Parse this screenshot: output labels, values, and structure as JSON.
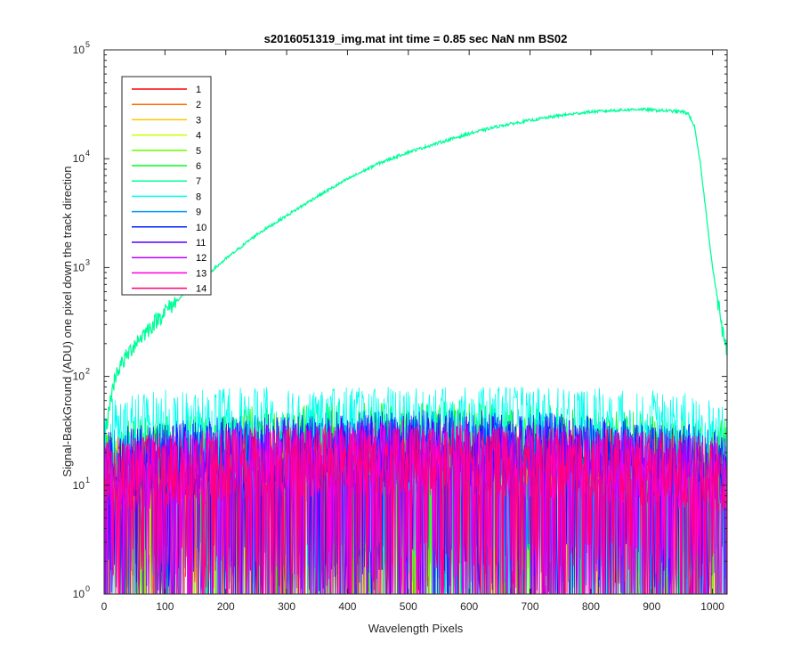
{
  "chart_data": {
    "type": "line",
    "title": "s2016051319_img.mat int time = 0.85 sec  NaN nm BS02",
    "xlabel": "Wavelength Pixels",
    "ylabel": "Signal-BackGround (ADU) one pixel down the track direction",
    "xlim": [
      0,
      1024
    ],
    "ylim": [
      1,
      100000
    ],
    "yscale": "log",
    "grid": false,
    "legend_position": "top-left",
    "x_ticks": [
      0,
      100,
      200,
      300,
      400,
      500,
      600,
      700,
      800,
      900,
      1000
    ],
    "y_ticks": [
      {
        "value": 1,
        "base": "10",
        "exp": "0"
      },
      {
        "value": 10,
        "base": "10",
        "exp": "1"
      },
      {
        "value": 100,
        "base": "10",
        "exp": "2"
      },
      {
        "value": 1000,
        "base": "10",
        "exp": "3"
      },
      {
        "value": 10000,
        "base": "10",
        "exp": "4"
      },
      {
        "value": 100000,
        "base": "10",
        "exp": "5"
      }
    ],
    "series": [
      {
        "name": "1",
        "color": "#ff0000",
        "kind": "noise",
        "typical": 10,
        "max": 45
      },
      {
        "name": "2",
        "color": "#ff6a00",
        "kind": "noise",
        "typical": 10,
        "max": 45
      },
      {
        "name": "3",
        "color": "#ffc800",
        "kind": "noise",
        "typical": 10,
        "max": 45
      },
      {
        "name": "4",
        "color": "#c8ff00",
        "kind": "noise",
        "typical": 12,
        "max": 50
      },
      {
        "name": "5",
        "color": "#6aff00",
        "kind": "noise",
        "typical": 15,
        "max": 70
      },
      {
        "name": "6",
        "color": "#00ff22",
        "kind": "noise",
        "typical": 18,
        "max": 90
      },
      {
        "name": "7",
        "color": "#00ff99",
        "kind": "signal",
        "x": [
          0,
          10,
          20,
          50,
          100,
          150,
          200,
          250,
          300,
          350,
          400,
          450,
          500,
          550,
          600,
          650,
          700,
          750,
          800,
          850,
          880,
          900,
          930,
          950,
          960,
          970,
          980,
          990,
          1000,
          1010,
          1020,
          1024
        ],
        "y": [
          25,
          60,
          110,
          200,
          400,
          700,
          1200,
          2000,
          3000,
          4500,
          6500,
          9000,
          11500,
          14000,
          17000,
          20000,
          22500,
          25000,
          27000,
          28000,
          28500,
          28000,
          27500,
          27000,
          26000,
          20000,
          9000,
          3000,
          1000,
          450,
          200,
          180
        ]
      },
      {
        "name": "8",
        "color": "#00ffee",
        "kind": "noise",
        "typical": 30,
        "max": 80
      },
      {
        "name": "9",
        "color": "#0099ff",
        "kind": "noise",
        "typical": 15,
        "max": 50
      },
      {
        "name": "10",
        "color": "#0022ff",
        "kind": "noise",
        "typical": 15,
        "max": 55
      },
      {
        "name": "11",
        "color": "#5500ff",
        "kind": "noise",
        "typical": 14,
        "max": 45
      },
      {
        "name": "12",
        "color": "#bb00ff",
        "kind": "noise",
        "typical": 12,
        "max": 40
      },
      {
        "name": "13",
        "color": "#ff00dd",
        "kind": "noise",
        "typical": 12,
        "max": 40
      },
      {
        "name": "14",
        "color": "#ff0077",
        "kind": "noise",
        "typical": 12,
        "max": 35
      }
    ]
  }
}
